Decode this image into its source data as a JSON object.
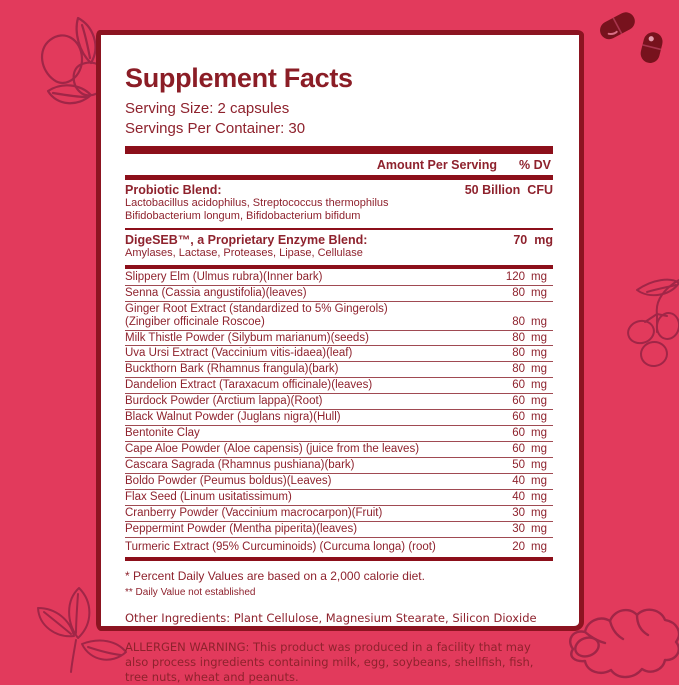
{
  "theme": {
    "background_color": "#e23a5c",
    "panel_border_color": "#8c1421",
    "bar_color": "#8c0f1a",
    "text_color": "#8e222d",
    "decoration_stroke_color": "#a02647",
    "capsule_fill_color": "#77121d"
  },
  "header": {
    "title": "Supplement Facts",
    "serving_size": "Serving Size: 2 capsules",
    "servings_per_container": "Servings Per Container: 30"
  },
  "columns": {
    "amount_header": "Amount Per Serving",
    "dv_header": "% DV"
  },
  "blends": [
    {
      "name": "Probiotic Blend:",
      "amount": "50 Billion",
      "unit": "CFU",
      "sub_lines": [
        "Lactobacillus acidophilus, Streptococcus thermophilus",
        "Bifidobacterium longum, Bifidobacterium bifidum"
      ]
    },
    {
      "name": "DigeSEB™, a Proprietary Enzyme Blend:",
      "amount": "70",
      "unit": "mg",
      "sub_lines": [
        "Amylases, Lactase, Proteases, Lipase, Cellulase"
      ]
    }
  ],
  "ingredients": [
    {
      "name_lines": [
        "Slippery Elm (Ulmus rubra)(Inner bark)"
      ],
      "amount": "120",
      "unit": "mg"
    },
    {
      "name_lines": [
        "Senna (Cassia angustifolia)(leaves)"
      ],
      "amount": "80",
      "unit": "mg"
    },
    {
      "name_lines": [
        "Ginger Root Extract (standardized to 5% Gingerols)",
        "(Zingiber officinale Roscoe)"
      ],
      "amount": "80",
      "unit": "mg"
    },
    {
      "name_lines": [
        "Milk Thistle Powder (Silybum marianum)(seeds)"
      ],
      "amount": "80",
      "unit": "mg"
    },
    {
      "name_lines": [
        "Uva Ursi Extract (Vaccinium vitis-idaea)(leaf)"
      ],
      "amount": "80",
      "unit": "mg"
    },
    {
      "name_lines": [
        "Buckthorn Bark (Rhamnus frangula)(bark)"
      ],
      "amount": "80",
      "unit": "mg"
    },
    {
      "name_lines": [
        "Dandelion Extract (Taraxacum officinale)(leaves)"
      ],
      "amount": "60",
      "unit": "mg"
    },
    {
      "name_lines": [
        "Burdock Powder (Arctium lappa)(Root)"
      ],
      "amount": "60",
      "unit": "mg"
    },
    {
      "name_lines": [
        "Black Walnut Powder (Juglans nigra)(Hull)"
      ],
      "amount": "60",
      "unit": "mg"
    },
    {
      "name_lines": [
        "Bentonite Clay"
      ],
      "amount": "60",
      "unit": "mg"
    },
    {
      "name_lines": [
        "Cape Aloe Powder (Aloe capensis) (juice from the leaves)"
      ],
      "amount": "60",
      "unit": "mg"
    },
    {
      "name_lines": [
        "Cascara Sagrada (Rhamnus pushiana)(bark)"
      ],
      "amount": "50",
      "unit": "mg"
    },
    {
      "name_lines": [
        "Boldo Powder (Peumus boldus)(Leaves)"
      ],
      "amount": "40",
      "unit": "mg"
    },
    {
      "name_lines": [
        "Flax Seed (Linum usitatissimum)"
      ],
      "amount": "40",
      "unit": "mg"
    },
    {
      "name_lines": [
        "Cranberry Powder (Vaccinium macrocarpon)(Fruit)"
      ],
      "amount": "30",
      "unit": "mg"
    },
    {
      "name_lines": [
        "Peppermint Powder (Mentha piperita)(leaves)"
      ],
      "amount": "30",
      "unit": "mg"
    },
    {
      "name_lines": [
        "Turmeric Extract (95% Curcuminoids) (Curcuma longa) (root)"
      ],
      "amount": "20",
      "unit": "mg"
    }
  ],
  "footnotes": {
    "daily_value": "* Percent Daily Values are based on a 2,000 calorie diet.",
    "not_established": "** Daily Value not established"
  },
  "other_ingredients": "Other Ingredients: Plant Cellulose, Magnesium Stearate, Silicon Dioxide",
  "allergen_warning": "ALLERGEN WARNING: This product was produced in a facility that may also process ingredients containing milk, egg, soybeans, shellfish, fish, tree nuts, wheat and peanuts.",
  "decorations": {
    "top_left": "nuts-leaves-illustration",
    "top_right": "capsule-pills",
    "right": "berries-illustration",
    "bottom_left": "leaves-illustration",
    "bottom_right": "ginger-root-illustration"
  }
}
